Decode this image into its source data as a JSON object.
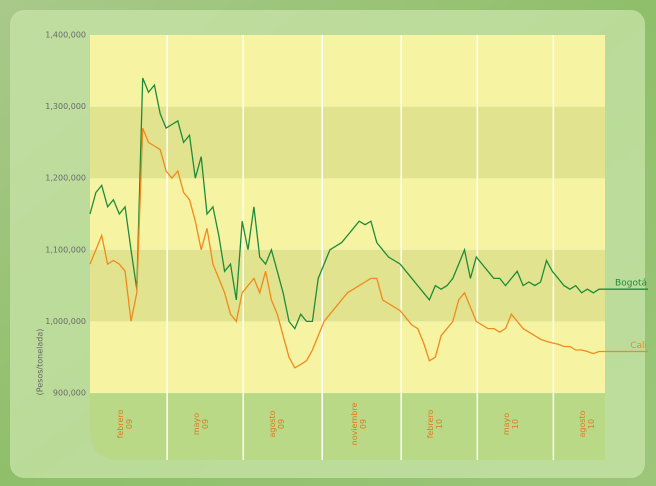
{
  "chart_data": {
    "type": "line",
    "y_label": "(Pesos/tonelada)",
    "categories": [
      null,
      null,
      null,
      null,
      null,
      null,
      "febrero 09",
      null,
      null,
      null,
      null,
      null,
      null,
      null,
      null,
      null,
      null,
      null,
      null,
      "mayo 09",
      null,
      null,
      null,
      null,
      null,
      null,
      null,
      null,
      null,
      null,
      null,
      null,
      "agosto 09",
      null,
      null,
      null,
      null,
      null,
      null,
      null,
      null,
      null,
      null,
      null,
      null,
      null,
      "noviembre 09",
      null,
      null,
      null,
      null,
      null,
      null,
      null,
      null,
      null,
      null,
      null,
      null,
      "febrero 10",
      null,
      null,
      null,
      null,
      null,
      null,
      null,
      null,
      null,
      null,
      null,
      null,
      "mayo 10",
      null,
      null,
      null,
      null,
      null,
      null,
      null,
      null,
      null,
      null,
      null,
      null,
      "agosto 10",
      null,
      null,
      null
    ],
    "series": [
      {
        "name": "Bogotá",
        "color": "#1e8c3a",
        "values": [
          1150000,
          1180000,
          1190000,
          1160000,
          1170000,
          1150000,
          1160000,
          1100000,
          1045000,
          1340000,
          1320000,
          1330000,
          1290000,
          1270000,
          1275000,
          1280000,
          1250000,
          1260000,
          1200000,
          1230000,
          1150000,
          1160000,
          1120000,
          1070000,
          1080000,
          1030000,
          1140000,
          1100000,
          1160000,
          1090000,
          1080000,
          1100000,
          1070000,
          1040000,
          1000000,
          990000,
          1010000,
          1000000,
          1000000,
          1060000,
          1080000,
          1100000,
          1105000,
          1110000,
          1120000,
          1130000,
          1140000,
          1135000,
          1140000,
          1110000,
          1100000,
          1090000,
          1085000,
          1080000,
          1070000,
          1060000,
          1050000,
          1040000,
          1030000,
          1050000,
          1045000,
          1050000,
          1060000,
          1080000,
          1100000,
          1060000,
          1090000,
          1080000,
          1070000,
          1060000,
          1060000,
          1050000,
          1060000,
          1070000,
          1050000,
          1055000,
          1050000,
          1055000,
          1085000,
          1070000,
          1060000,
          1050000,
          1045000,
          1050000,
          1040000,
          1045000,
          1040000,
          1045000,
          1045000
        ]
      },
      {
        "name": "Cali",
        "color": "#f08a1c",
        "values": [
          1080000,
          1100000,
          1120000,
          1080000,
          1085000,
          1080000,
          1070000,
          1000000,
          1040000,
          1270000,
          1250000,
          1245000,
          1240000,
          1210000,
          1200000,
          1210000,
          1180000,
          1170000,
          1140000,
          1100000,
          1130000,
          1080000,
          1060000,
          1040000,
          1010000,
          1000000,
          1040000,
          1050000,
          1060000,
          1040000,
          1070000,
          1030000,
          1010000,
          980000,
          950000,
          935000,
          940000,
          945000,
          960000,
          980000,
          1000000,
          1010000,
          1020000,
          1030000,
          1040000,
          1045000,
          1050000,
          1055000,
          1060000,
          1060000,
          1030000,
          1025000,
          1020000,
          1015000,
          1005000,
          995000,
          990000,
          970000,
          945000,
          950000,
          980000,
          990000,
          1000000,
          1030000,
          1040000,
          1020000,
          1000000,
          995000,
          990000,
          990000,
          985000,
          990000,
          1010000,
          1000000,
          990000,
          985000,
          980000,
          975000,
          972000,
          970000,
          968000,
          965000,
          965000,
          960000,
          960000,
          958000,
          955000,
          958000,
          958000
        ]
      }
    ],
    "ylim": [
      900000,
      1400000
    ],
    "yticks": [
      {
        "value": 900000,
        "label": "900,000"
      },
      {
        "value": 1000000,
        "label": "1,000,000"
      },
      {
        "value": 1100000,
        "label": "1,100,000"
      },
      {
        "value": 1200000,
        "label": "1,200,000"
      },
      {
        "value": 1300000,
        "label": "1,300,000"
      },
      {
        "value": 1400000,
        "label": "1,400,000"
      }
    ],
    "grid": true
  }
}
